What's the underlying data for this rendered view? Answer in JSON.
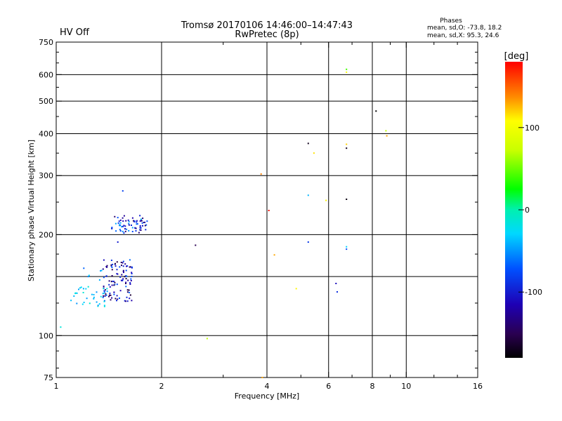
{
  "header": {
    "title_line1": "Tromsø 20170106 14:46:00–14:47:43",
    "title_line2": "RwPretec (8p)",
    "status": "HV Off",
    "status_color": "#d40000"
  },
  "phases": {
    "title": "Phases",
    "line_o": "mean, sd,O: -73.8, 18.2",
    "line_x": "mean, sd,X:  95.3, 24.6"
  },
  "colorbar": {
    "unit": "[deg]",
    "min": -180,
    "max": 180,
    "ticks": [
      {
        "value": 100,
        "label": "100"
      },
      {
        "value": 0,
        "label": "0"
      },
      {
        "value": -100,
        "label": "-100"
      }
    ]
  },
  "chart_data": {
    "type": "scatter",
    "xlabel": "Frequency [MHz]",
    "ylabel": "Stationary phase Virtual Height [km]",
    "xscale": "log",
    "yscale": "log",
    "xlim": [
      1,
      16
    ],
    "ylim": [
      75,
      750
    ],
    "x_ticks": [
      {
        "value": 1,
        "label": "1"
      },
      {
        "value": 2,
        "label": "2"
      },
      {
        "value": 4,
        "label": "4"
      },
      {
        "value": 6,
        "label": "6"
      },
      {
        "value": 8,
        "label": "8"
      },
      {
        "value": 10,
        "label": "10"
      },
      {
        "value": 16,
        "label": "16"
      }
    ],
    "x_gridlines": [
      2,
      4,
      6,
      8,
      10
    ],
    "x_minor_ticks": [
      3,
      5,
      7,
      9,
      12,
      14
    ],
    "y_ticks": [
      {
        "value": 75,
        "label": "75"
      },
      {
        "value": 100,
        "label": "100"
      },
      {
        "value": 200,
        "label": "200"
      },
      {
        "value": 300,
        "label": "300"
      },
      {
        "value": 400,
        "label": "400"
      },
      {
        "value": 500,
        "label": "500"
      },
      {
        "value": 600,
        "label": "600"
      },
      {
        "value": 750,
        "label": "750"
      }
    ],
    "y_gridlines": [
      100,
      150,
      200,
      300,
      400,
      500,
      600
    ],
    "y_minor_ticks": [
      80,
      90,
      125,
      175,
      250,
      350,
      450,
      550,
      650,
      700
    ],
    "points": [
      {
        "f": 1.03,
        "h": 106,
        "phase": -15
      },
      {
        "f": 1.55,
        "h": 270,
        "phase": -80
      },
      {
        "f": 1.5,
        "h": 190,
        "phase": -100
      },
      {
        "f": 2.5,
        "h": 186,
        "phase": -150
      },
      {
        "f": 2.7,
        "h": 98,
        "phase": 70
      },
      {
        "f": 3.85,
        "h": 303,
        "phase": 140
      },
      {
        "f": 4.05,
        "h": 236,
        "phase": 175
      },
      {
        "f": 4.2,
        "h": 174,
        "phase": 130
      },
      {
        "f": 4.85,
        "h": 138,
        "phase": 110
      },
      {
        "f": 5.25,
        "h": 374,
        "phase": -170
      },
      {
        "f": 5.45,
        "h": 350,
        "phase": 115
      },
      {
        "f": 5.25,
        "h": 262,
        "phase": -40
      },
      {
        "f": 5.25,
        "h": 190,
        "phase": -85
      },
      {
        "f": 5.9,
        "h": 253,
        "phase": 110
      },
      {
        "f": 6.3,
        "h": 143,
        "phase": -110
      },
      {
        "f": 6.35,
        "h": 135,
        "phase": -90
      },
      {
        "f": 6.75,
        "h": 622,
        "phase": 40
      },
      {
        "f": 6.75,
        "h": 610,
        "phase": 105
      },
      {
        "f": 6.75,
        "h": 372,
        "phase": 120
      },
      {
        "f": 6.75,
        "h": 362,
        "phase": -170
      },
      {
        "f": 6.75,
        "h": 255,
        "phase": -175
      },
      {
        "f": 6.75,
        "h": 184,
        "phase": -30
      },
      {
        "f": 6.75,
        "h": 181,
        "phase": -75
      },
      {
        "f": 8.2,
        "h": 467,
        "phase": -180
      },
      {
        "f": 8.75,
        "h": 408,
        "phase": 70
      },
      {
        "f": 8.8,
        "h": 394,
        "phase": 130
      },
      {
        "f": 3.88,
        "h": 75,
        "phase": 130
      }
    ],
    "clusters": [
      {
        "f_range": [
          1.44,
          1.82
        ],
        "h_range": [
          202,
          228
        ],
        "count": 70,
        "phase_range": [
          -150,
          -40
        ]
      },
      {
        "f_range": [
          1.36,
          1.65
        ],
        "h_range": [
          126,
          170
        ],
        "count": 110,
        "phase_range": [
          -160,
          -60
        ]
      },
      {
        "f_range": [
          1.1,
          1.4
        ],
        "h_range": [
          122,
          140
        ],
        "count": 35,
        "phase_range": [
          -60,
          -10
        ]
      },
      {
        "f_range": [
          1.18,
          1.36
        ],
        "h_range": [
          145,
          160
        ],
        "count": 6,
        "phase_range": [
          -80,
          -20
        ]
      }
    ]
  }
}
